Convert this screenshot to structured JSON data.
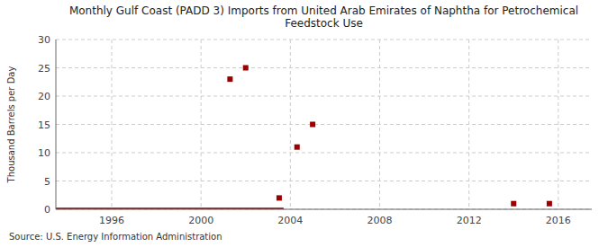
{
  "chart_data": {
    "type": "scatter",
    "title": "Monthly Gulf Coast (PADD 3) Imports from United Arab Emirates of Naphtha for Petrochemical\nFeedstock Use",
    "y_label": "Thousand Barrels per Day",
    "annotations": [
      "Source: U.S. Energy Information Administration"
    ],
    "series": [
      {
        "type": "line",
        "color": "#880000",
        "line_style": "solid",
        "x": [
          1993.5,
          2003.7
        ],
        "values": [
          0,
          0
        ]
      },
      {
        "type": "scatter",
        "color": "#990000",
        "marker": "square",
        "x": [
          2001.3,
          2002.0,
          2003.5,
          2004.3,
          2005.0,
          2014.0,
          2015.6
        ],
        "values": [
          23,
          25,
          2,
          11,
          15,
          1,
          1
        ]
      }
    ],
    "xlim": [
      1993.5,
      2017.5
    ],
    "xticks": [
      1996,
      2000,
      2004,
      2008,
      2012,
      2016
    ],
    "ylim": [
      0,
      30
    ],
    "yticks": [
      0,
      5,
      10,
      15,
      20,
      25,
      30
    ],
    "grid": true
  }
}
